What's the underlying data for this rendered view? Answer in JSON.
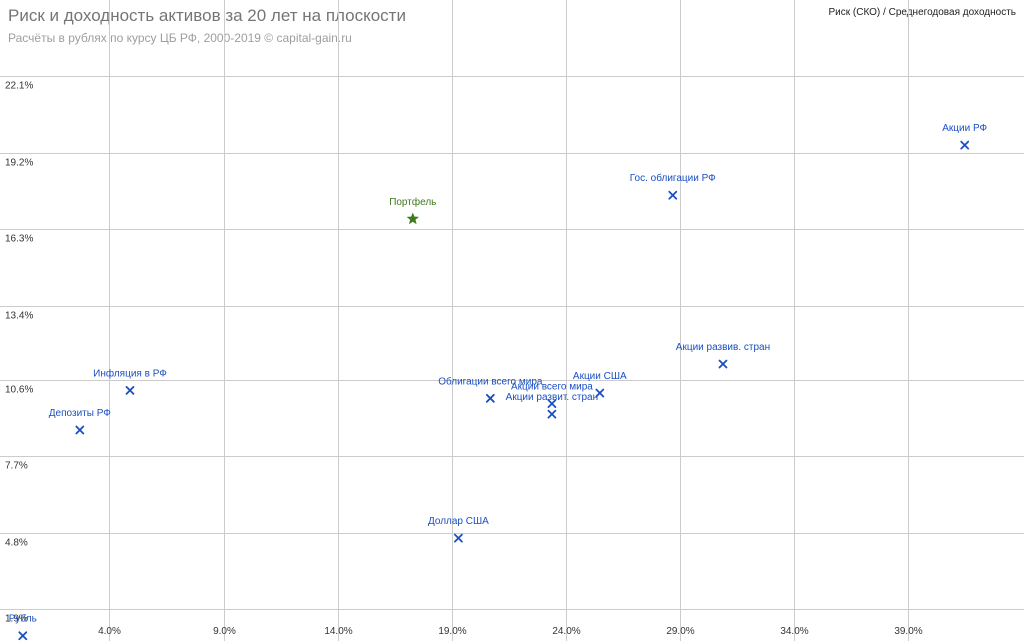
{
  "chart_data": {
    "type": "scatter",
    "title": "Риск и доходность активов за 20 лет на плоскости",
    "subtitle": "Расчёты в рублях по курсу ЦБ РФ, 2000-2019 © capital-gain.ru",
    "legend": "Риск (СКО) / Среднегодовая доходность",
    "legend_position": "top-right",
    "grid": true,
    "xlim": [
      -0.8,
      44.1
    ],
    "ylim": [
      0.7,
      25.0
    ],
    "x_ticks": [
      4.0,
      9.0,
      14.0,
      19.0,
      24.0,
      29.0,
      34.0,
      39.0
    ],
    "x_tick_labels": [
      "4.0%",
      "9.0%",
      "14.0%",
      "19.0%",
      "24.0%",
      "29.0%",
      "34.0%",
      "39.0%"
    ],
    "y_ticks": [
      1.9,
      4.8,
      7.7,
      10.6,
      13.4,
      16.3,
      19.2,
      22.1
    ],
    "y_tick_labels": [
      "1.9%",
      "4.8%",
      "7.7%",
      "10.6%",
      "13.4%",
      "16.3%",
      "19.2%",
      "22.1%"
    ],
    "points": [
      {
        "label": "Рубль",
        "x": 0.2,
        "y": 0.9,
        "marker": "x",
        "color": "#1a4fc4",
        "label_pos": "above"
      },
      {
        "label": "Депозиты РФ",
        "x": 2.7,
        "y": 8.7,
        "marker": "x",
        "color": "#1a4fc4",
        "label_pos": "above"
      },
      {
        "label": "Инфляция в РФ",
        "x": 4.9,
        "y": 10.2,
        "marker": "x",
        "color": "#1a4fc4",
        "label_pos": "above"
      },
      {
        "label": "Портфель",
        "x": 17.3,
        "y": 16.7,
        "marker": "star",
        "color": "#3f7a1f",
        "label_pos": "above"
      },
      {
        "label": "Доллар США",
        "x": 19.3,
        "y": 4.6,
        "marker": "x",
        "color": "#1a4fc4",
        "label_pos": "above"
      },
      {
        "label": "Облигации всего мира",
        "x": 20.7,
        "y": 9.9,
        "marker": "x",
        "color": "#1a4fc4",
        "label_pos": "above"
      },
      {
        "label": "Акции всего мира",
        "x": 23.4,
        "y": 9.7,
        "marker": "x",
        "color": "#1a4fc4",
        "label_pos": "above"
      },
      {
        "label": "Акции развит. стран",
        "x": 23.4,
        "y": 9.3,
        "marker": "x",
        "color": "#1a4fc4",
        "label_pos": "above"
      },
      {
        "label": "Акции США",
        "x": 25.5,
        "y": 10.1,
        "marker": "x",
        "color": "#1a4fc4",
        "label_pos": "above"
      },
      {
        "label": "Гос. облигации РФ",
        "x": 28.7,
        "y": 17.6,
        "marker": "x",
        "color": "#1a4fc4",
        "label_pos": "above"
      },
      {
        "label": "Акции развив. стран",
        "x": 30.9,
        "y": 11.2,
        "marker": "x",
        "color": "#1a4fc4",
        "label_pos": "above"
      },
      {
        "label": "Акции РФ",
        "x": 41.5,
        "y": 19.5,
        "marker": "x",
        "color": "#1a4fc4",
        "label_pos": "above"
      }
    ]
  },
  "colors": {
    "gridline": "#cccccc",
    "tick_text": "#333333"
  }
}
